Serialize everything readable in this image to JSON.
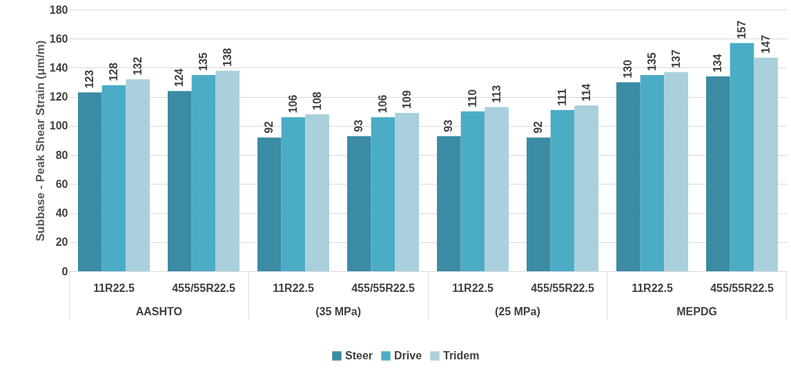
{
  "chart_data": {
    "type": "bar",
    "ylabel": "Subbase - Peak Shear Strain (μm/m)",
    "categories": [
      "11R22.5",
      "455/55R22.5",
      "11R22.5",
      "455/55R22.5",
      "11R22.5",
      "455/55R22.5",
      "11R22.5",
      "455/55R22.5"
    ],
    "annotations": [
      "AASHTO",
      "(35 MPa)",
      "(25 MPa)",
      "MEPDG"
    ],
    "series": [
      {
        "name": "Steer",
        "color": "#3a8ba3",
        "values": [
          123,
          124,
          92,
          93,
          93,
          92,
          130,
          134
        ]
      },
      {
        "name": "Drive",
        "color": "#4bacc6",
        "values": [
          128,
          135,
          106,
          106,
          110,
          111,
          135,
          157
        ]
      },
      {
        "name": "Tridem",
        "color": "#a9d0dc",
        "values": [
          132,
          138,
          108,
          109,
          113,
          114,
          137,
          147
        ]
      }
    ],
    "ylim": [
      0,
      180
    ],
    "yticks": [
      0,
      20,
      40,
      60,
      80,
      100,
      120,
      140,
      160,
      180
    ],
    "grid": "y",
    "legend": "bottom",
    "data_labels": true
  }
}
